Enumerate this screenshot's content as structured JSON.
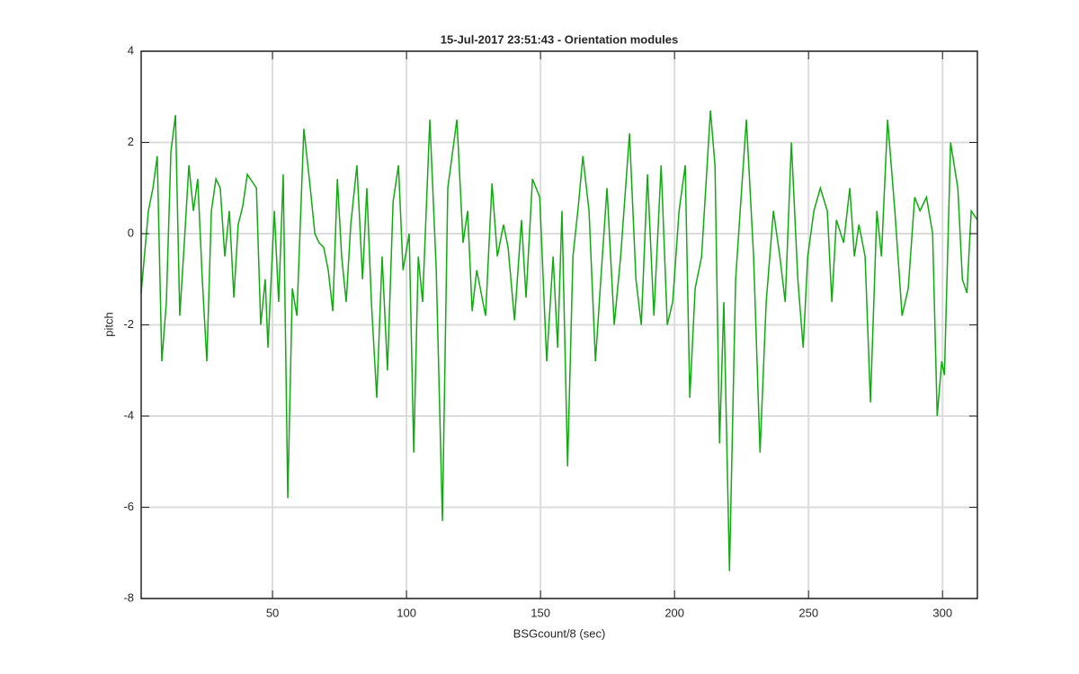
{
  "chart_data": {
    "type": "line",
    "title": "15-Jul-2017 23:51:43 - Orientation modules",
    "x_label": "BSGcount/8 (sec)",
    "y_label": "pitch",
    "x": [
      1,
      3.7,
      5.4,
      7.0,
      8.7,
      10.4,
      12.1,
      13.8,
      15.4,
      17.1,
      18.8,
      20.5,
      22.1,
      23.8,
      25.5,
      27.2,
      28.9,
      30.5,
      32.2,
      33.9,
      35.6,
      37.2,
      38.9,
      40.6,
      44.0,
      45.6,
      47.3,
      48.3,
      50.7,
      52.3,
      54.0,
      55.7,
      57.4,
      59.1,
      61.7,
      64.1,
      65.8,
      67.4,
      69.1,
      70.8,
      72.5,
      74.2,
      75.8,
      77.5,
      79.2,
      81.5,
      83.6,
      85.2,
      86.9,
      88.9,
      90.9,
      92.9,
      95.0,
      97.0,
      98.7,
      101.0,
      102.7,
      104.4,
      106.0,
      108.7,
      111.1,
      113.4,
      115.4,
      118.8,
      121.1,
      122.8,
      124.5,
      126.2,
      129.5,
      131.9,
      133.9,
      136.2,
      137.9,
      140.3,
      142.9,
      144.6,
      147.0,
      149.7,
      152.3,
      154.7,
      156.4,
      158.0,
      160.1,
      162.1,
      164.1,
      165.8,
      168.1,
      170.5,
      172.5,
      174.8,
      177.5,
      179.9,
      183.2,
      185.6,
      187.6,
      189.9,
      192.3,
      195.0,
      197.3,
      199.3,
      201.7,
      204.0,
      205.7,
      207.7,
      210.1,
      213.4,
      215.1,
      216.8,
      218.4,
      220.5,
      222.8,
      224.5,
      226.8,
      229.5,
      231.9,
      234.2,
      236.9,
      239.3,
      241.3,
      243.6,
      246.0,
      248.0,
      249.7,
      252.0,
      254.4,
      257.0,
      258.7,
      260.4,
      263.1,
      265.4,
      267.1,
      268.8,
      271.1,
      273.1,
      275.5,
      277.2,
      279.5,
      282.2,
      284.9,
      287.2,
      289.6,
      291.6,
      294.0,
      296.3,
      298.0,
      299.7,
      300.7,
      303.0,
      305.7,
      307.4,
      309.1,
      310.7,
      313
    ],
    "series": [
      {
        "name": "pitch",
        "color": "#11aa11",
        "values": [
          -1.3,
          0.5,
          1.0,
          1.7,
          -2.8,
          -1.5,
          1.8,
          2.6,
          -1.8,
          -0.2,
          1.5,
          0.5,
          1.2,
          -1.0,
          -2.8,
          0.5,
          1.2,
          1.0,
          -0.5,
          0.5,
          -1.4,
          0.2,
          0.6,
          1.3,
          1.0,
          -2.0,
          -1.0,
          -2.5,
          0.5,
          -1.5,
          1.3,
          -5.8,
          -1.2,
          -1.8,
          2.3,
          1.0,
          0.0,
          -0.2,
          -0.3,
          -0.8,
          -1.7,
          1.2,
          -0.5,
          -1.5,
          0.2,
          1.5,
          -1.0,
          1.0,
          -1.5,
          -3.6,
          -0.5,
          -3.0,
          0.7,
          1.5,
          -0.8,
          0,
          -4.8,
          -0.5,
          -1.5,
          2.5,
          -0.8,
          -6.3,
          1.0,
          2.5,
          -0.2,
          0.5,
          -1.7,
          -0.8,
          -1.8,
          1.1,
          -0.5,
          0.2,
          -0.3,
          -1.9,
          0.3,
          -1.4,
          1.2,
          0.8,
          -2.8,
          -0.5,
          -2.5,
          0.5,
          -5.1,
          -0.5,
          0.6,
          1.7,
          0.5,
          -2.8,
          -1.0,
          1.0,
          -2.0,
          -0.5,
          2.2,
          -1.0,
          -2.0,
          1.3,
          -1.8,
          1.5,
          -2.0,
          -1.5,
          0.5,
          1.5,
          -3.6,
          -1.2,
          -0.5,
          2.7,
          1.5,
          -4.6,
          -1.5,
          -7.4,
          -1.0,
          0.5,
          2.5,
          -0.5,
          -4.8,
          -1.5,
          0.5,
          -0.5,
          -1.5,
          2.0,
          -1.0,
          -2.5,
          -0.5,
          0.5,
          1.0,
          0.5,
          -1.5,
          0.3,
          -0.2,
          1.0,
          -0.5,
          0.2,
          -0.5,
          -3.7,
          0.5,
          -0.5,
          2.5,
          0.5,
          -1.8,
          -1.2,
          0.8,
          0.5,
          0.8,
          0,
          -4.0,
          -2.8,
          -3.1,
          2.0,
          1.0,
          -1.0,
          -1.3,
          0.5,
          0.3
        ]
      }
    ],
    "xlim": [
      1,
      313
    ],
    "ylim": [
      -8,
      4
    ],
    "xticks": [
      50,
      100,
      150,
      200,
      250,
      300
    ],
    "yticks": [
      -8,
      -6,
      -4,
      -2,
      0,
      2,
      4
    ],
    "grid": true
  }
}
